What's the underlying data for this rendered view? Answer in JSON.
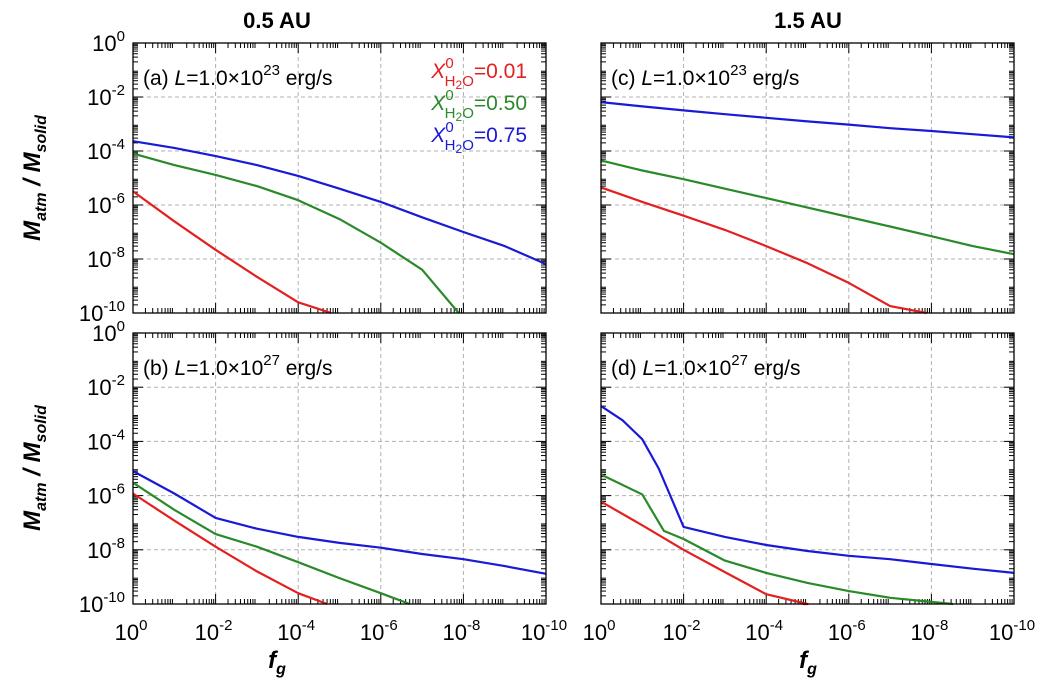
{
  "figure": {
    "col_titles": [
      "0.5 AU",
      "1.5 AU"
    ],
    "ylabel_main": "M",
    "ylabel_sub1": "atm",
    "ylabel_slash": " / M",
    "ylabel_sub2": "solid",
    "xlabel_main": "f",
    "xlabel_sub": "g"
  },
  "legend": [
    {
      "x_main": "X",
      "x_sup": "0",
      "x_sub": "H2O",
      "value": "=0.01",
      "color": "#e32020"
    },
    {
      "x_main": "X",
      "x_sup": "0",
      "x_sub": "H2O",
      "value": "=0.50",
      "color": "#2a8a2a"
    },
    {
      "x_main": "X",
      "x_sup": "0",
      "x_sub": "H2O",
      "value": "=0.75",
      "color": "#1a1ad6"
    }
  ],
  "chart_data": [
    {
      "type": "line",
      "panel_label": {
        "prefix": "(a) ",
        "var": "L",
        "eq": "=1.0×10",
        "exp": "23",
        "unit": " erg/s"
      },
      "x_scale": "log",
      "y_scale": "log",
      "xlim": [
        1,
        1e-10
      ],
      "ylim": [
        1e-10,
        1
      ],
      "x_ticks": [
        "0",
        "-2",
        "-4",
        "-6",
        "-8",
        "-10"
      ],
      "y_ticks": [
        "0",
        "-2",
        "-4",
        "-6",
        "-8",
        "-10"
      ],
      "series": [
        {
          "color": "#e32020",
          "x": [
            1,
            0.1,
            0.01,
            0.001,
            0.0001,
            1.6e-05
          ],
          "y": [
            3.2e-06,
            2.5e-07,
            2.2e-08,
            2.2e-09,
            2.5e-10,
            1e-10
          ]
        },
        {
          "color": "#2a8a2a",
          "x": [
            1,
            0.1,
            0.01,
            0.001,
            0.0001,
            1e-05,
            1e-06,
            1e-07,
            1.3e-08
          ],
          "y": [
            8e-05,
            3e-05,
            1.3e-05,
            5e-06,
            1.5e-06,
            3e-07,
            4e-08,
            4e-09,
            1e-10
          ]
        },
        {
          "color": "#1a1ad6",
          "x": [
            1,
            0.1,
            0.01,
            0.001,
            0.0001,
            1e-05,
            1e-06,
            1e-07,
            1e-08,
            1e-09,
            1e-10
          ],
          "y": [
            0.00023,
            0.00013,
            6.5e-05,
            3e-05,
            1.2e-05,
            4e-06,
            1.3e-06,
            3.5e-07,
            1e-07,
            3e-08,
            6.5e-09
          ]
        }
      ]
    },
    {
      "type": "line",
      "panel_label": {
        "prefix": "(b) ",
        "var": "L",
        "eq": "=1.0×10",
        "exp": "27",
        "unit": " erg/s"
      },
      "x_scale": "log",
      "y_scale": "log",
      "xlim": [
        1,
        1e-10
      ],
      "ylim": [
        1e-10,
        1
      ],
      "x_ticks": [
        "0",
        "-2",
        "-4",
        "-6",
        "-8",
        "-10"
      ],
      "y_ticks": [
        "0",
        "-2",
        "-4",
        "-6",
        "-8",
        "-10"
      ],
      "series": [
        {
          "color": "#e32020",
          "x": [
            1,
            0.1,
            0.01,
            0.001,
            0.0001,
            2e-05
          ],
          "y": [
            1.2e-06,
            1.2e-07,
            1.3e-08,
            1.6e-09,
            2.5e-10,
            1e-10
          ]
        },
        {
          "color": "#2a8a2a",
          "x": [
            1,
            0.1,
            0.01,
            0.001,
            0.0001,
            1e-05,
            1e-06,
            2e-07
          ],
          "y": [
            3e-06,
            3e-07,
            3.8e-08,
            1.3e-08,
            3.5e-09,
            9e-10,
            2.5e-10,
            1e-10
          ]
        },
        {
          "color": "#1a1ad6",
          "x": [
            1,
            0.1,
            0.01,
            0.001,
            0.0001,
            1e-05,
            1e-06,
            1e-07,
            1e-08,
            1e-09,
            1e-10
          ],
          "y": [
            8e-06,
            1.2e-06,
            1.5e-07,
            6e-08,
            3e-08,
            1.8e-08,
            1.2e-08,
            7e-09,
            4.5e-09,
            2.5e-09,
            1.3e-09
          ]
        }
      ]
    },
    {
      "type": "line",
      "panel_label": {
        "prefix": "(c) ",
        "var": "L",
        "eq": "=1.0×10",
        "exp": "23",
        "unit": " erg/s"
      },
      "x_scale": "log",
      "y_scale": "log",
      "xlim": [
        1,
        1e-10
      ],
      "ylim": [
        1e-10,
        1
      ],
      "x_ticks": [
        "0",
        "-2",
        "-4",
        "-6",
        "-8",
        "-10"
      ],
      "y_ticks": [],
      "series": [
        {
          "color": "#e32020",
          "x": [
            1,
            0.1,
            0.01,
            0.001,
            0.0001,
            1e-05,
            1e-06,
            1e-07,
            1.3e-08
          ],
          "y": [
            4.5e-06,
            1.3e-06,
            4e-07,
            1.2e-07,
            3e-08,
            7e-09,
            1.3e-09,
            1.8e-10,
            1e-10
          ]
        },
        {
          "color": "#2a8a2a",
          "x": [
            1,
            0.1,
            0.01,
            0.001,
            0.0001,
            1e-05,
            1e-06,
            1e-07,
            1e-08,
            1e-09,
            1e-10
          ],
          "y": [
            4.5e-05,
            1.9e-05,
            9e-06,
            4e-06,
            1.8e-06,
            8e-07,
            3.6e-07,
            1.6e-07,
            7e-08,
            3e-08,
            1.5e-08
          ]
        },
        {
          "color": "#1a1ad6",
          "x": [
            1,
            0.1,
            0.01,
            0.001,
            0.0001,
            1e-05,
            1e-06,
            1e-07,
            1e-08,
            1e-09,
            1e-10
          ],
          "y": [
            0.0065,
            0.0045,
            0.0032,
            0.0023,
            0.0017,
            0.00125,
            0.00095,
            0.0007,
            0.00055,
            0.00042,
            0.00032
          ]
        }
      ]
    },
    {
      "type": "line",
      "panel_label": {
        "prefix": "(d) ",
        "var": "L",
        "eq": "=1.0×10",
        "exp": "27",
        "unit": " erg/s"
      },
      "x_scale": "log",
      "y_scale": "log",
      "xlim": [
        1,
        1e-10
      ],
      "ylim": [
        1e-10,
        1
      ],
      "x_ticks": [
        "0",
        "-2",
        "-4",
        "-6",
        "-8",
        "-10"
      ],
      "y_ticks": [],
      "series": [
        {
          "color": "#e32020",
          "x": [
            1,
            0.1,
            0.01,
            0.001,
            0.0001,
            1e-05,
            1.3e-05
          ],
          "y": [
            6e-07,
            8e-08,
            1e-08,
            1.5e-09,
            2.3e-10,
            1e-10,
            1e-10
          ]
        },
        {
          "color": "#2a8a2a",
          "x": [
            1,
            0.1,
            0.03,
            0.01,
            0.001,
            0.0001,
            1e-05,
            1e-06,
            1e-07,
            1e-08,
            3e-09
          ],
          "y": [
            6e-06,
            1.1e-06,
            5e-08,
            2.5e-08,
            4e-09,
            1.4e-09,
            6e-10,
            3e-10,
            1.7e-10,
            1.2e-10,
            1e-10
          ]
        },
        {
          "color": "#1a1ad6",
          "x": [
            1,
            0.3,
            0.1,
            0.04,
            0.01,
            0.001,
            0.0001,
            1e-05,
            1e-06,
            1e-07,
            1e-08,
            1e-09,
            1e-10
          ],
          "y": [
            0.002,
            0.0006,
            0.00012,
            1e-05,
            7e-08,
            3e-08,
            1.5e-08,
            9e-09,
            6e-09,
            4.5e-09,
            3e-09,
            2e-09,
            1.4e-09
          ]
        }
      ]
    }
  ]
}
